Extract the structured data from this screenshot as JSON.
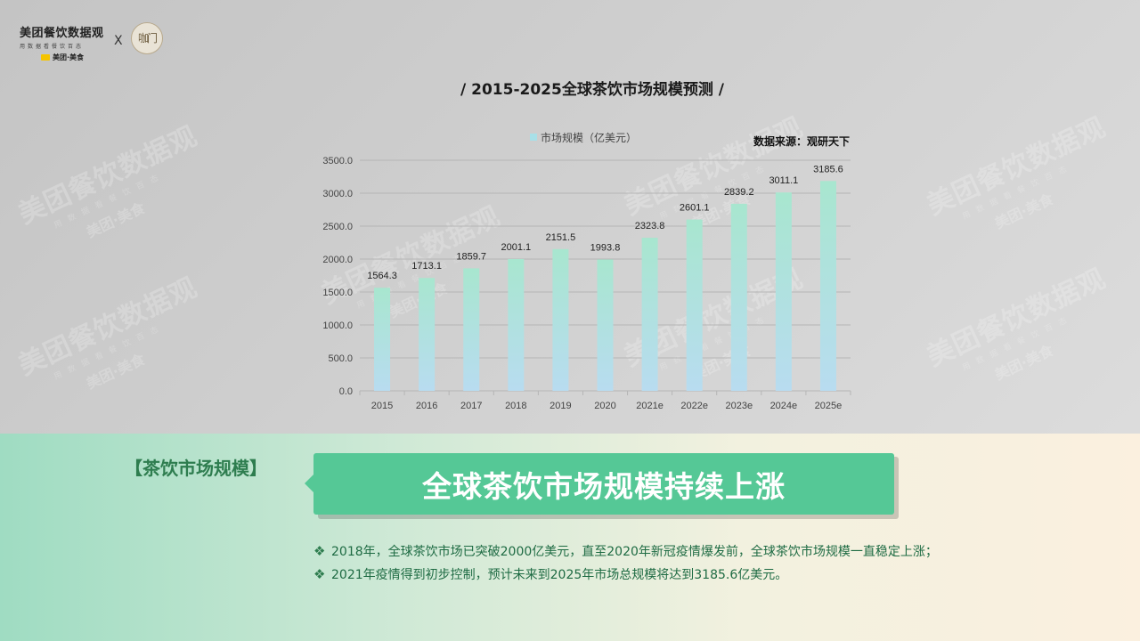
{
  "brand": {
    "name": "美团餐饮数据观",
    "sub": "用数据看餐饮百态",
    "tag": "美团·美食",
    "x": "X",
    "partner": "咖门"
  },
  "chart_title": "/ 2015-2025全球茶饮市场规模预测 /",
  "source": "数据来源：观研天下",
  "chart_data": {
    "type": "bar",
    "categories": [
      "2015",
      "2016",
      "2017",
      "2018",
      "2019",
      "2020",
      "2021e",
      "2022e",
      "2023e",
      "2024e",
      "2025e"
    ],
    "series": [
      {
        "name": "市场规模（亿美元）",
        "values": [
          1564.3,
          1713.1,
          1859.7,
          2001.1,
          2151.5,
          1993.8,
          2323.8,
          2601.1,
          2839.2,
          3011.1,
          3185.6
        ]
      }
    ],
    "data_labels": [
      "1564.3",
      "1713.1",
      "1859.7",
      "2001.1",
      "2151.5",
      "1993.8",
      "2323.8",
      "2601.1",
      "2839.2",
      "3011.1",
      "3185.6"
    ],
    "yticks": [
      "0.0",
      "500.0",
      "1000.0",
      "1500.0",
      "2000.0",
      "2500.0",
      "3000.0",
      "3500.0"
    ],
    "ylim": [
      0,
      3500
    ],
    "legend": "top",
    "grid": true,
    "colors": {
      "bar_top": "#a8e6cf",
      "bar_bottom": "#b8dcf0",
      "legend_swatch": "#a8e0e8"
    }
  },
  "section": {
    "label": "【茶饮市场规模】",
    "banner": "全球茶饮市场规模持续上涨"
  },
  "bullets": [
    {
      "icon": "❖",
      "text": "2018年，全球茶饮市场已突破2000亿美元，直至2020年新冠疫情爆发前，全球茶饮市场规模一直稳定上涨；"
    },
    {
      "icon": "❖",
      "text": "2021年疫情得到初步控制，预计未来到2025年市场总规模将达到3185.6亿美元。"
    }
  ],
  "watermark": {
    "name": "美团餐饮数据观",
    "sub": "用数据看餐饮百态",
    "tag": "美团·美食"
  }
}
